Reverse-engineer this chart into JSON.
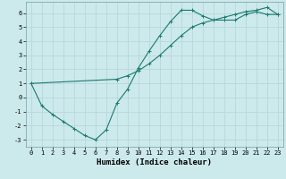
{
  "title": "",
  "xlabel": "Humidex (Indice chaleur)",
  "ylabel": "",
  "background_color": "#cce9ec",
  "grid_color": "#b8d8db",
  "line_color": "#1a7a6e",
  "xlim": [
    -0.5,
    23.5
  ],
  "ylim": [
    -3.5,
    6.8
  ],
  "yticks": [
    -3,
    -2,
    -1,
    0,
    1,
    2,
    3,
    4,
    5,
    6
  ],
  "xticks": [
    0,
    1,
    2,
    3,
    4,
    5,
    6,
    7,
    8,
    9,
    10,
    11,
    12,
    13,
    14,
    15,
    16,
    17,
    18,
    19,
    20,
    21,
    22,
    23
  ],
  "line1_x": [
    0,
    1,
    2,
    3,
    4,
    5,
    6,
    7,
    8,
    9,
    10,
    11,
    12,
    13,
    14,
    15,
    16,
    17,
    18,
    19,
    20,
    21,
    22,
    23
  ],
  "line1_y": [
    1.0,
    -0.6,
    -1.2,
    -1.7,
    -2.2,
    -2.7,
    -3.0,
    -2.3,
    -0.4,
    0.6,
    2.1,
    3.3,
    4.4,
    5.4,
    6.2,
    6.2,
    5.8,
    5.5,
    5.5,
    5.5,
    5.9,
    6.1,
    5.9,
    5.9
  ],
  "line2_x": [
    0,
    8,
    9,
    10,
    11,
    12,
    13,
    14,
    15,
    16,
    17,
    18,
    19,
    20,
    21,
    22,
    23
  ],
  "line2_y": [
    1.0,
    1.3,
    1.55,
    1.9,
    2.4,
    3.0,
    3.7,
    4.4,
    5.0,
    5.3,
    5.5,
    5.7,
    5.9,
    6.1,
    6.2,
    6.4,
    5.9
  ],
  "marker": "+",
  "markersize": 3,
  "linewidth": 0.8,
  "tick_fontsize": 5,
  "xlabel_fontsize": 6.5
}
